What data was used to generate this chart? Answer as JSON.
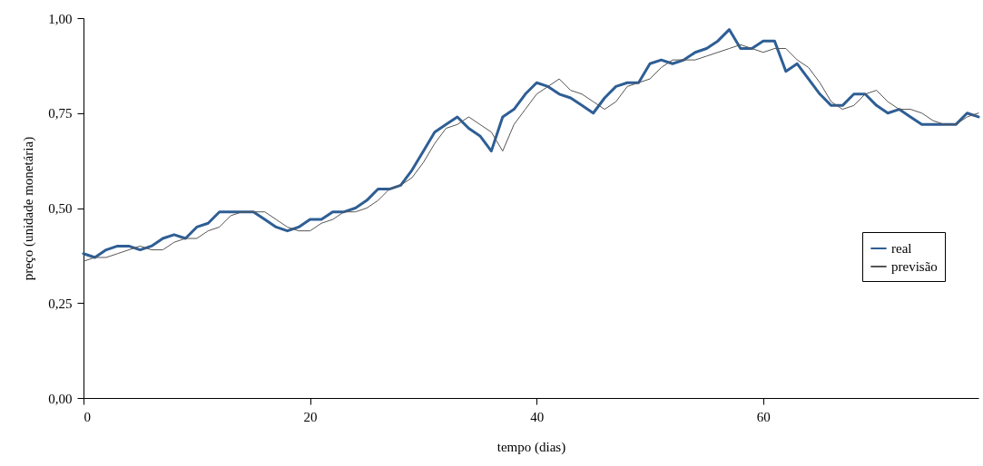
{
  "chart_data": {
    "type": "line",
    "xlabel": "tempo (dias)",
    "ylabel": "preço (unidade monetária)",
    "x": [
      0,
      1,
      2,
      3,
      4,
      5,
      6,
      7,
      8,
      9,
      10,
      11,
      12,
      13,
      14,
      15,
      16,
      17,
      18,
      19,
      20,
      21,
      22,
      23,
      24,
      25,
      26,
      27,
      28,
      29,
      30,
      31,
      32,
      33,
      34,
      35,
      36,
      37,
      38,
      39,
      40,
      41,
      42,
      43,
      44,
      45,
      46,
      47,
      48,
      49,
      50,
      51,
      52,
      53,
      54,
      55,
      56,
      57,
      58,
      59,
      60,
      61,
      62,
      63,
      64,
      65,
      66,
      67,
      68,
      69,
      70,
      71,
      72,
      73,
      74,
      75,
      76,
      77,
      78,
      79
    ],
    "series": [
      {
        "name": "real",
        "color": "#2e5e95",
        "values": [
          0.38,
          0.37,
          0.39,
          0.4,
          0.4,
          0.39,
          0.4,
          0.42,
          0.43,
          0.42,
          0.45,
          0.46,
          0.49,
          0.49,
          0.49,
          0.49,
          0.47,
          0.45,
          0.44,
          0.45,
          0.47,
          0.47,
          0.49,
          0.49,
          0.5,
          0.52,
          0.55,
          0.55,
          0.56,
          0.6,
          0.65,
          0.7,
          0.72,
          0.74,
          0.71,
          0.69,
          0.65,
          0.74,
          0.76,
          0.8,
          0.83,
          0.82,
          0.8,
          0.79,
          0.77,
          0.75,
          0.79,
          0.82,
          0.83,
          0.83,
          0.88,
          0.89,
          0.88,
          0.89,
          0.91,
          0.92,
          0.94,
          0.97,
          0.92,
          0.92,
          0.94,
          0.94,
          0.86,
          0.88,
          0.84,
          0.8,
          0.77,
          0.77,
          0.8,
          0.8,
          0.77,
          0.75,
          0.76,
          0.74,
          0.72,
          0.72,
          0.72,
          0.72,
          0.75,
          0.74
        ]
      },
      {
        "name": "previsão",
        "color": "#555555",
        "values": [
          0.36,
          0.37,
          0.37,
          0.38,
          0.39,
          0.4,
          0.39,
          0.39,
          0.41,
          0.42,
          0.42,
          0.44,
          0.45,
          0.48,
          0.49,
          0.49,
          0.49,
          0.47,
          0.45,
          0.44,
          0.44,
          0.46,
          0.47,
          0.49,
          0.49,
          0.5,
          0.52,
          0.55,
          0.56,
          0.58,
          0.62,
          0.67,
          0.71,
          0.72,
          0.74,
          0.72,
          0.7,
          0.65,
          0.72,
          0.76,
          0.8,
          0.82,
          0.84,
          0.81,
          0.8,
          0.78,
          0.76,
          0.78,
          0.82,
          0.83,
          0.84,
          0.87,
          0.89,
          0.89,
          0.89,
          0.9,
          0.91,
          0.92,
          0.93,
          0.92,
          0.91,
          0.92,
          0.92,
          0.89,
          0.87,
          0.83,
          0.78,
          0.76,
          0.77,
          0.8,
          0.81,
          0.78,
          0.76,
          0.76,
          0.75,
          0.73,
          0.72,
          0.72,
          0.74,
          0.75
        ]
      }
    ],
    "xlim": [
      0,
      79
    ],
    "xticks": [
      0,
      20,
      40,
      60
    ],
    "ylim": [
      0,
      1
    ],
    "yticks": [
      {
        "value": 0,
        "label": "0,00"
      },
      {
        "value": 0.25,
        "label": "0,25"
      },
      {
        "value": 0.5,
        "label": "0,50"
      },
      {
        "value": 0.75,
        "label": "0,75"
      },
      {
        "value": 1,
        "label": "1,00"
      }
    ],
    "grid": false,
    "legend": "right"
  }
}
